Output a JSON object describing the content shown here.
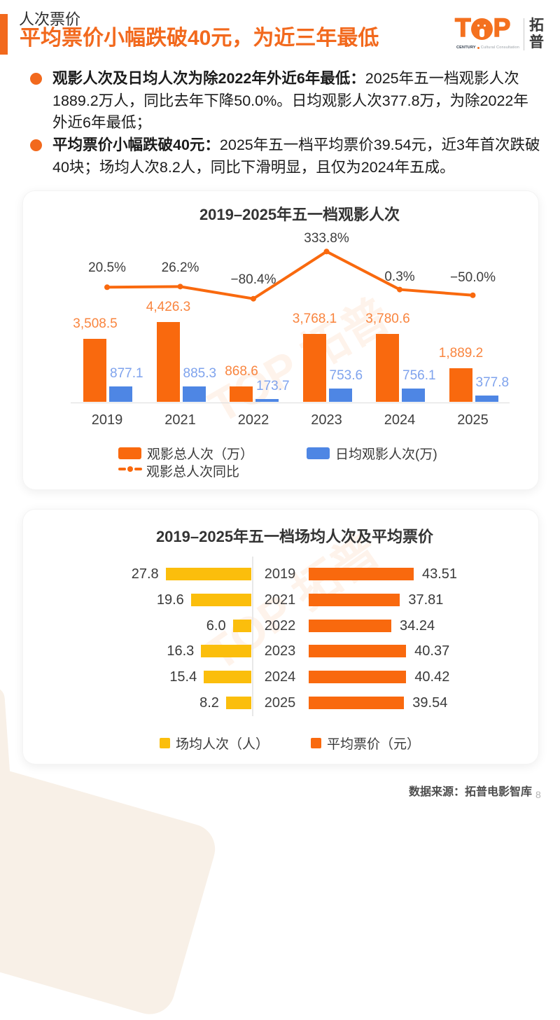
{
  "header": {
    "kicker": "人次票价",
    "title": "平均票价小幅跌破40元，为近三年最低",
    "logo": {
      "word_t": "T",
      "word_p": "P",
      "sub_left": "CENTURY",
      "sub_right": "Cultural Consultation",
      "cn_chars": [
        "拓",
        "普"
      ]
    }
  },
  "bullets": [
    {
      "bold": "观影人次及日均人次为除2022年外近6年最低：",
      "lines": [
        "2025年五一档观影人次",
        "1889.2万人，同比去年下降50.0%。日均观影人次377.8万，为除2022年",
        "外近6年最低；"
      ]
    },
    {
      "bold": "平均票价小幅跌破40元：",
      "lines": [
        "2025年五一档平均票价39.54元，近3年首次跌破",
        "40块；场均人次8.2人，同比下滑明显，且仅为2024年五成。"
      ]
    }
  ],
  "chart_data": [
    {
      "type": "bar",
      "title": "2019–2025年五一档观影人次",
      "categories": [
        "2019",
        "2021",
        "2022",
        "2023",
        "2024",
        "2025"
      ],
      "series": [
        {
          "name": "观影总人次（万）",
          "kind": "bar",
          "color": "#F9690E",
          "label_color": "#F9853F",
          "values": [
            3508.5,
            4426.3,
            868.6,
            3768.1,
            3780.6,
            1889.2
          ],
          "labels": [
            "3,508.5",
            "4,426.3",
            "868.6",
            "3,768.1",
            "3,780.6",
            "1,889.2"
          ]
        },
        {
          "name": "日均观影人次(万)",
          "kind": "bar",
          "color": "#4E86E4",
          "label_color": "#7FA3ED",
          "values": [
            877.1,
            885.3,
            173.7,
            753.6,
            756.1,
            377.8
          ],
          "labels": [
            "877.1",
            "885.3",
            "173.7",
            "753.6",
            "756.1",
            "377.8"
          ]
        },
        {
          "name": "观影总人次同比",
          "kind": "line",
          "color": "#F9690E",
          "label_color": "#3d3d3d",
          "values": [
            20.5,
            26.2,
            -80.4,
            333.8,
            0.3,
            -50.0
          ],
          "labels": [
            "20.5%",
            "26.2%",
            "−80.4%",
            "333.8%",
            "0.3%",
            "−50.0%"
          ]
        }
      ],
      "legend_position": "bottom"
    },
    {
      "type": "bar",
      "title": "2019–2025年五一档场均人次及平均票价",
      "categories": [
        "2019",
        "2021",
        "2022",
        "2023",
        "2024",
        "2025"
      ],
      "series": [
        {
          "name": "场均人次（人）",
          "side": "left",
          "color": "#FBBE0C",
          "values": [
            27.8,
            19.6,
            6.0,
            16.3,
            15.4,
            8.2
          ],
          "labels": [
            "27.8",
            "19.6",
            "6.0",
            "16.3",
            "15.4",
            "8.2"
          ]
        },
        {
          "name": "平均票价（元）",
          "side": "right",
          "color": "#F9690E",
          "values": [
            43.51,
            37.81,
            34.24,
            40.37,
            40.42,
            39.54
          ],
          "labels": [
            "43.51",
            "37.81",
            "34.24",
            "40.37",
            "40.42",
            "39.54"
          ]
        }
      ],
      "legend_position": "bottom"
    }
  ],
  "watermark": {
    "text": "TOP 拓普"
  },
  "footer": {
    "source": "数据来源：拓普电影智库",
    "page_number": "8"
  }
}
